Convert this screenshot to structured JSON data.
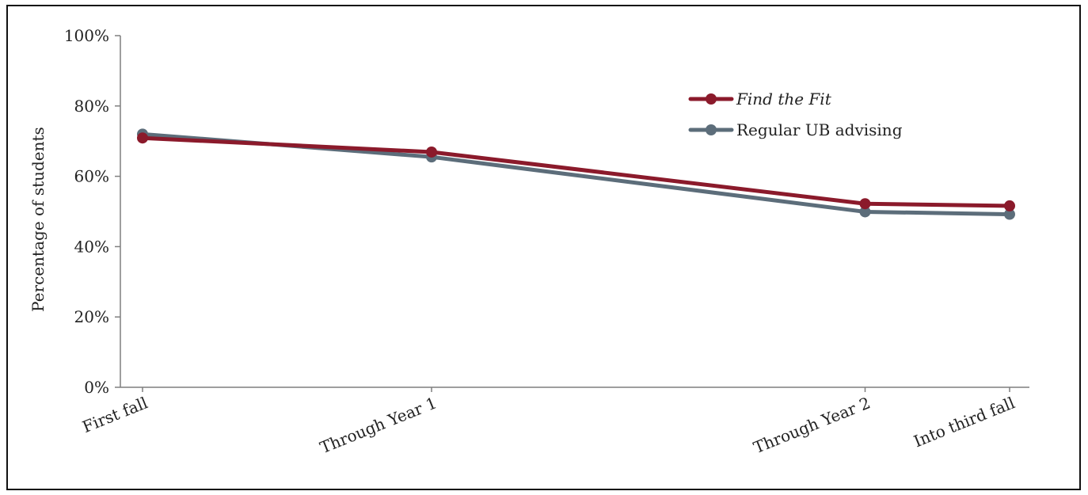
{
  "chart_data": {
    "type": "line",
    "title": "",
    "xlabel": "",
    "ylabel": "Percentage of students",
    "categories": [
      "First fall",
      "Through Year 1",
      "Through Year 2",
      "Into third fall"
    ],
    "x_time_points": [
      0,
      1,
      2.5,
      3
    ],
    "ylim": [
      0,
      100
    ],
    "y_ticks": [
      "0%",
      "20%",
      "40%",
      "60%",
      "80%",
      "100%"
    ],
    "y_tick_values": [
      0,
      20,
      40,
      60,
      80,
      100
    ],
    "grid": false,
    "legend_position": "top-right",
    "series": [
      {
        "name": "Find the Fit",
        "name_style": "italic",
        "color": "#8b1a2b",
        "values": [
          70.9,
          66.9,
          52.2,
          51.6
        ]
      },
      {
        "name": "Regular UB advising",
        "name_style": "normal",
        "color": "#5c6d7a",
        "values": [
          72.0,
          65.5,
          49.9,
          49.2
        ]
      }
    ]
  }
}
